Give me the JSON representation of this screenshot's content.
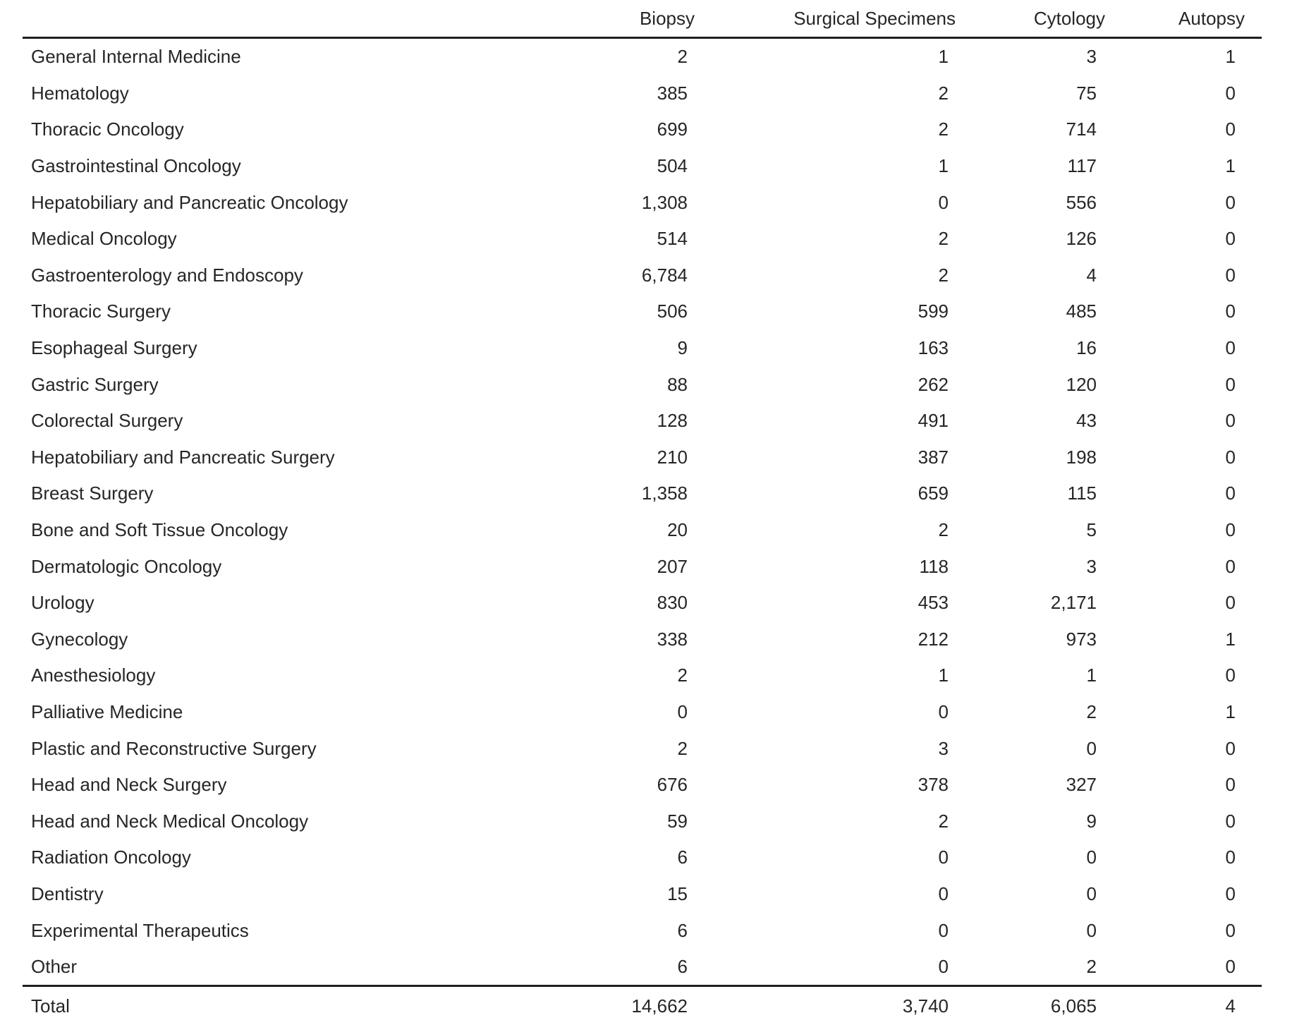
{
  "table": {
    "column_headers": [
      "Biopsy",
      "Surgical Specimens",
      "Cytology",
      "Autopsy"
    ],
    "rows": [
      {
        "label": "General Internal Medicine",
        "values": [
          "2",
          "1",
          "3",
          "1"
        ]
      },
      {
        "label": "Hematology",
        "values": [
          "385",
          "2",
          "75",
          "0"
        ]
      },
      {
        "label": "Thoracic Oncology",
        "values": [
          "699",
          "2",
          "714",
          "0"
        ]
      },
      {
        "label": "Gastrointestinal Oncology",
        "values": [
          "504",
          "1",
          "117",
          "1"
        ]
      },
      {
        "label": "Hepatobiliary and Pancreatic Oncology",
        "values": [
          "1,308",
          "0",
          "556",
          "0"
        ]
      },
      {
        "label": "Medical Oncology",
        "values": [
          "514",
          "2",
          "126",
          "0"
        ]
      },
      {
        "label": "Gastroenterology and Endoscopy",
        "values": [
          "6,784",
          "2",
          "4",
          "0"
        ]
      },
      {
        "label": "Thoracic Surgery",
        "values": [
          "506",
          "599",
          "485",
          "0"
        ]
      },
      {
        "label": "Esophageal Surgery",
        "values": [
          "9",
          "163",
          "16",
          "0"
        ]
      },
      {
        "label": "Gastric Surgery",
        "values": [
          "88",
          "262",
          "120",
          "0"
        ]
      },
      {
        "label": "Colorectal Surgery",
        "values": [
          "128",
          "491",
          "43",
          "0"
        ]
      },
      {
        "label": "Hepatobiliary and Pancreatic Surgery",
        "values": [
          "210",
          "387",
          "198",
          "0"
        ]
      },
      {
        "label": "Breast Surgery",
        "values": [
          "1,358",
          "659",
          "115",
          "0"
        ]
      },
      {
        "label": "Bone and Soft Tissue Oncology",
        "values": [
          "20",
          "2",
          "5",
          "0"
        ]
      },
      {
        "label": "Dermatologic Oncology",
        "values": [
          "207",
          "118",
          "3",
          "0"
        ]
      },
      {
        "label": "Urology",
        "values": [
          "830",
          "453",
          "2,171",
          "0"
        ]
      },
      {
        "label": "Gynecology",
        "values": [
          "338",
          "212",
          "973",
          "1"
        ]
      },
      {
        "label": "Anesthesiology",
        "values": [
          "2",
          "1",
          "1",
          "0"
        ]
      },
      {
        "label": "Palliative Medicine",
        "values": [
          "0",
          "0",
          "2",
          "1"
        ]
      },
      {
        "label": "Plastic and Reconstructive Surgery",
        "values": [
          "2",
          "3",
          "0",
          "0"
        ]
      },
      {
        "label": "Head and Neck Surgery",
        "values": [
          "676",
          "378",
          "327",
          "0"
        ]
      },
      {
        "label": "Head and Neck Medical Oncology",
        "values": [
          "59",
          "2",
          "9",
          "0"
        ]
      },
      {
        "label": "Radiation Oncology",
        "values": [
          "6",
          "0",
          "0",
          "0"
        ]
      },
      {
        "label": "Dentistry",
        "values": [
          "15",
          "0",
          "0",
          "0"
        ]
      },
      {
        "label": "Experimental Therapeutics",
        "values": [
          "6",
          "0",
          "0",
          "0"
        ]
      },
      {
        "label": "Other",
        "values": [
          "6",
          "0",
          "2",
          "0"
        ]
      }
    ],
    "total_row": {
      "label": "Total",
      "values": [
        "14,662",
        "3,740",
        "6,065",
        "4"
      ]
    }
  }
}
